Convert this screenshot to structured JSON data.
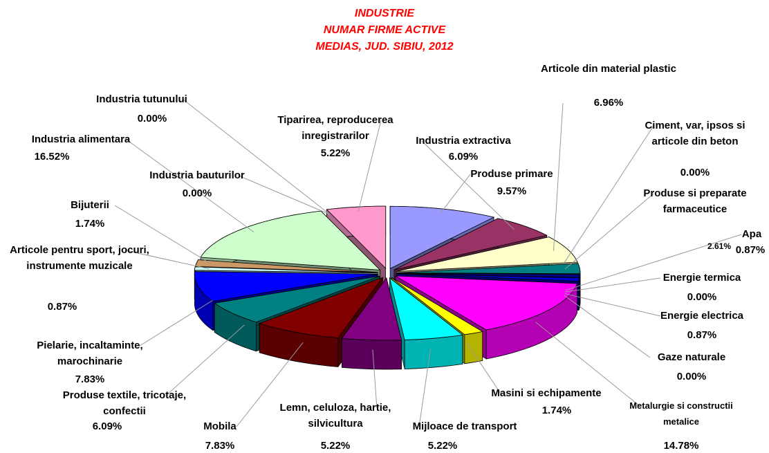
{
  "chart_data": {
    "type": "pie",
    "title": [
      "INDUSTRIE",
      "NUMAR FIRME ACTIVE",
      "MEDIAS, JUD. SIBIU, 2012"
    ],
    "categories": [
      "Produse primare",
      "Industria extractiva",
      "Articole din material plastic",
      "Ciment, var, ipsos si articole din beton",
      "Produse si preparate farmaceutice",
      "Apa",
      "Energie termica",
      "Energie electrica",
      "Gaze naturale",
      "Metalurgie si constructii metalice",
      "Masini si echipamente",
      "Mijloace de transport",
      "Lemn, celuloza, hartie, silvicultura",
      "Mobila",
      "Produse textile, tricotaje, confectii",
      "Pielarie, incaltaminte, marochinarie",
      "Articole pentru sport, jocuri, instrumente muzicale",
      "Bijuterii",
      "Industria alimentara",
      "Industria bauturilor",
      "Industria tutunului",
      "Tiparirea, reproducerea inregistrarilor"
    ],
    "values": [
      9.57,
      6.09,
      6.96,
      0,
      2.61,
      0.87,
      0,
      0.87,
      0,
      14.78,
      1.74,
      5.22,
      5.22,
      7.83,
      6.09,
      7.83,
      0.87,
      1.74,
      16.52,
      0,
      0,
      5.22
    ],
    "value_labels": [
      "9.57%",
      "6.09%",
      "6.96%",
      "0.00%",
      "2.61%",
      "0.87%",
      "0.00%",
      "0.87%",
      "0.00%",
      "14.78%",
      "1.74%",
      "5.22%",
      "5.22%",
      "7.83%",
      "6.09%",
      "7.83%",
      "0.87%",
      "1.74%",
      "16.52%",
      "0.00%",
      "0.00%",
      "5.22%"
    ],
    "colors": [
      "#9999ff",
      "#993366",
      "#ffffcc",
      "#ccffff",
      "#008080",
      "#000080",
      "#ff00ff",
      "#0000cc",
      "#ffff00",
      "#ff00ff",
      "#ffff00",
      "#00ffff",
      "#800080",
      "#800000",
      "#008080",
      "#0000ff",
      "#ccffff",
      "#cc9966",
      "#ccffcc",
      "#996633",
      "#ff99cc",
      "#ff99cc"
    ]
  }
}
